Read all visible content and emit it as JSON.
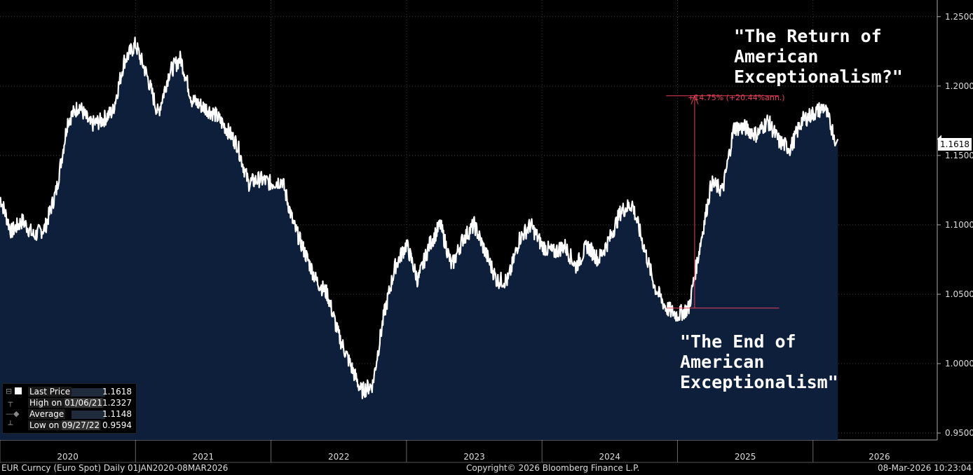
{
  "chart_data": {
    "type": "area",
    "title": "EUR Curncy (Euro Spot) Daily 01JAN2020-08MAR2026",
    "x": [
      "2020-01",
      "2020-02",
      "2020-03",
      "2020-04",
      "2020-05",
      "2020-06",
      "2020-07",
      "2020-08",
      "2020-09",
      "2020-10",
      "2020-11",
      "2020-12",
      "2021-01",
      "2021-02",
      "2021-03",
      "2021-04",
      "2021-05",
      "2021-06",
      "2021-07",
      "2021-08",
      "2021-09",
      "2021-10",
      "2021-11",
      "2021-12",
      "2022-01",
      "2022-02",
      "2022-03",
      "2022-04",
      "2022-05",
      "2022-06",
      "2022-07",
      "2022-08",
      "2022-09",
      "2022-10",
      "2022-11",
      "2022-12",
      "2023-01",
      "2023-02",
      "2023-03",
      "2023-04",
      "2023-05",
      "2023-06",
      "2023-07",
      "2023-08",
      "2023-09",
      "2023-10",
      "2023-11",
      "2023-12",
      "2024-01",
      "2024-02",
      "2024-03",
      "2024-04",
      "2024-05",
      "2024-06",
      "2024-07",
      "2024-08",
      "2024-09",
      "2024-10",
      "2024-11",
      "2024-12",
      "2025-01",
      "2025-02",
      "2025-03",
      "2025-04",
      "2025-05",
      "2025-06",
      "2025-07",
      "2025-08",
      "2025-09",
      "2025-10",
      "2025-11",
      "2025-12",
      "2026-01",
      "2026-02",
      "2026-03"
    ],
    "series": [
      {
        "values": [
          1.12,
          1.095,
          1.103,
          1.092,
          1.098,
          1.125,
          1.175,
          1.186,
          1.172,
          1.175,
          1.182,
          1.218,
          1.23,
          1.208,
          1.18,
          1.21,
          1.22,
          1.19,
          1.185,
          1.18,
          1.17,
          1.158,
          1.13,
          1.133,
          1.13,
          1.132,
          1.1,
          1.08,
          1.06,
          1.05,
          1.02,
          1.0,
          0.98,
          0.985,
          1.035,
          1.07,
          1.086,
          1.06,
          1.085,
          1.1,
          1.07,
          1.09,
          1.1,
          1.08,
          1.06,
          1.06,
          1.09,
          1.1,
          1.085,
          1.08,
          1.085,
          1.07,
          1.085,
          1.075,
          1.09,
          1.11,
          1.115,
          1.085,
          1.055,
          1.04,
          1.035,
          1.04,
          1.085,
          1.13,
          1.125,
          1.17,
          1.17,
          1.165,
          1.175,
          1.16,
          1.155,
          1.175,
          1.18,
          1.185,
          1.1618
        ]
      }
    ],
    "yticks": [
      "1.2500",
      "1.2000",
      "1.1500",
      "1.1000",
      "1.0500",
      "1.0000",
      "0.9500"
    ],
    "ylim": [
      0.945,
      1.262
    ],
    "xticks": [
      "2020",
      "2021",
      "2022",
      "2023",
      "2024",
      "2025",
      "2026"
    ],
    "grid": true,
    "last_price_label": "1.1618",
    "legend": [
      {
        "label": "Last Price",
        "date": "",
        "value": "1.1618"
      },
      {
        "label": "High on",
        "date": "01/06/21",
        "value": "1.2327"
      },
      {
        "label": "Average",
        "date": "",
        "value": "1.1148"
      },
      {
        "label": "Low on",
        "date": "09/27/22",
        "value": "0.9594"
      }
    ],
    "annotations": {
      "top": "\"The Return of\nAmerican\nExceptionalism?\"",
      "bottom": "\"The End of\nAmerican\nExceptionalism\"",
      "measure": "+14.75% (+20.44%ann.)"
    },
    "measure_levels": {
      "low": 1.04,
      "high": 1.193,
      "start": "2024-12",
      "end": "2025-10"
    }
  },
  "footer": {
    "left": "EUR Curncy (Euro Spot) Daily 01JAN2020-08MAR2026",
    "center": "Copyright© 2026 Bloomberg Finance L.P.",
    "right": "08-Mar-2026 10:23:04"
  },
  "colors": {
    "area": "#0d1f3a",
    "line": "#ffffff",
    "grid": "#3a3a3a",
    "measure": "#e8415a"
  }
}
